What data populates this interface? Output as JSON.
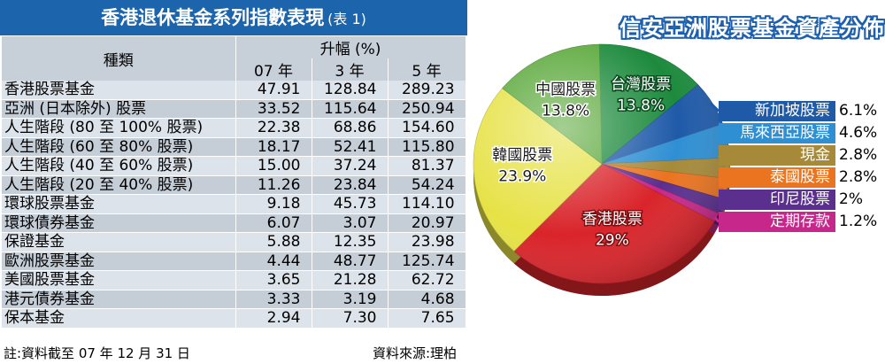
{
  "table": {
    "title": "香港退休基金系列指數表現",
    "title_note": "(表 1)",
    "header_category": "種類",
    "header_change": "升幅 (%)",
    "header_periods": [
      "07 年",
      "3 年",
      "5 年"
    ],
    "rows": [
      {
        "name": "香港股票基金",
        "y07": "47.91",
        "y3": "128.84",
        "y5": "289.23"
      },
      {
        "name": "亞洲 (日本除外) 股票",
        "y07": "33.52",
        "y3": "115.64",
        "y5": "250.94"
      },
      {
        "name": "人生階段 (80 至 100% 股票)",
        "y07": "22.38",
        "y3": "68.86",
        "y5": "154.60"
      },
      {
        "name": "人生階段 (60 至 80% 股票)",
        "y07": "18.17",
        "y3": "52.41",
        "y5": "115.80"
      },
      {
        "name": "人生階段 (40 至 60% 股票)",
        "y07": "15.00",
        "y3": "37.24",
        "y5": "81.37"
      },
      {
        "name": "人生階段 (20 至 40% 股票)",
        "y07": "11.26",
        "y3": "23.84",
        "y5": "54.24"
      },
      {
        "name": "環球股票基金",
        "y07": "9.18",
        "y3": "45.73",
        "y5": "114.10"
      },
      {
        "name": "環球債券基金",
        "y07": "6.07",
        "y3": "3.07",
        "y5": "20.97"
      },
      {
        "name": "保證基金",
        "y07": "5.88",
        "y3": "12.35",
        "y5": "23.98"
      },
      {
        "name": "歐洲股票基金",
        "y07": "4.44",
        "y3": "48.77",
        "y5": "125.74"
      },
      {
        "name": "美國股票基金",
        "y07": "3.65",
        "y3": "21.28",
        "y5": "62.72"
      },
      {
        "name": "港元債券基金",
        "y07": "3.33",
        "y3": "3.19",
        "y5": "4.68"
      },
      {
        "name": "保本基金",
        "y07": "2.94",
        "y3": "7.30",
        "y5": "7.65"
      }
    ],
    "footer_note": "註:資料截至 07 年 12 月 31 日",
    "footer_source": "資料來源:理柏"
  },
  "chart_data": {
    "type": "pie",
    "title": "信安亞洲股票基金資產分佈",
    "slices": [
      {
        "label": "香港股票",
        "value": 29,
        "value_text": "29%",
        "color": "#d9242a"
      },
      {
        "label": "韓國股票",
        "value": 23.9,
        "value_text": "23.9%",
        "color": "#e6e246"
      },
      {
        "label": "中國股票",
        "value": 13.8,
        "value_text": "13.8%",
        "color": "#5aa83a"
      },
      {
        "label": "台灣股票",
        "value": 13.8,
        "value_text": "13.8%",
        "color": "#1c8a3c"
      },
      {
        "label": "新加坡股票",
        "value": 6.1,
        "value_text": "6.1%",
        "color": "#1f5aa8"
      },
      {
        "label": "馬來西亞股票",
        "value": 4.6,
        "value_text": "4.6%",
        "color": "#2f8fd3"
      },
      {
        "label": "現金",
        "value": 2.8,
        "value_text": "2.8%",
        "color": "#a68a3a"
      },
      {
        "label": "泰國股票",
        "value": 2.8,
        "value_text": "2.8%",
        "color": "#ea7420"
      },
      {
        "label": "印尼股票",
        "value": 2,
        "value_text": "2%",
        "color": "#5a2f8e"
      },
      {
        "label": "定期存款",
        "value": 1.2,
        "value_text": "1.2%",
        "color": "#c7278a"
      }
    ],
    "inside_labels": [
      "香港股票",
      "韓國股票",
      "中國股票",
      "台灣股票"
    ],
    "legend_labels": [
      "新加坡股票",
      "馬來西亞股票",
      "現金",
      "泰國股票",
      "印尼股票",
      "定期存款"
    ]
  }
}
